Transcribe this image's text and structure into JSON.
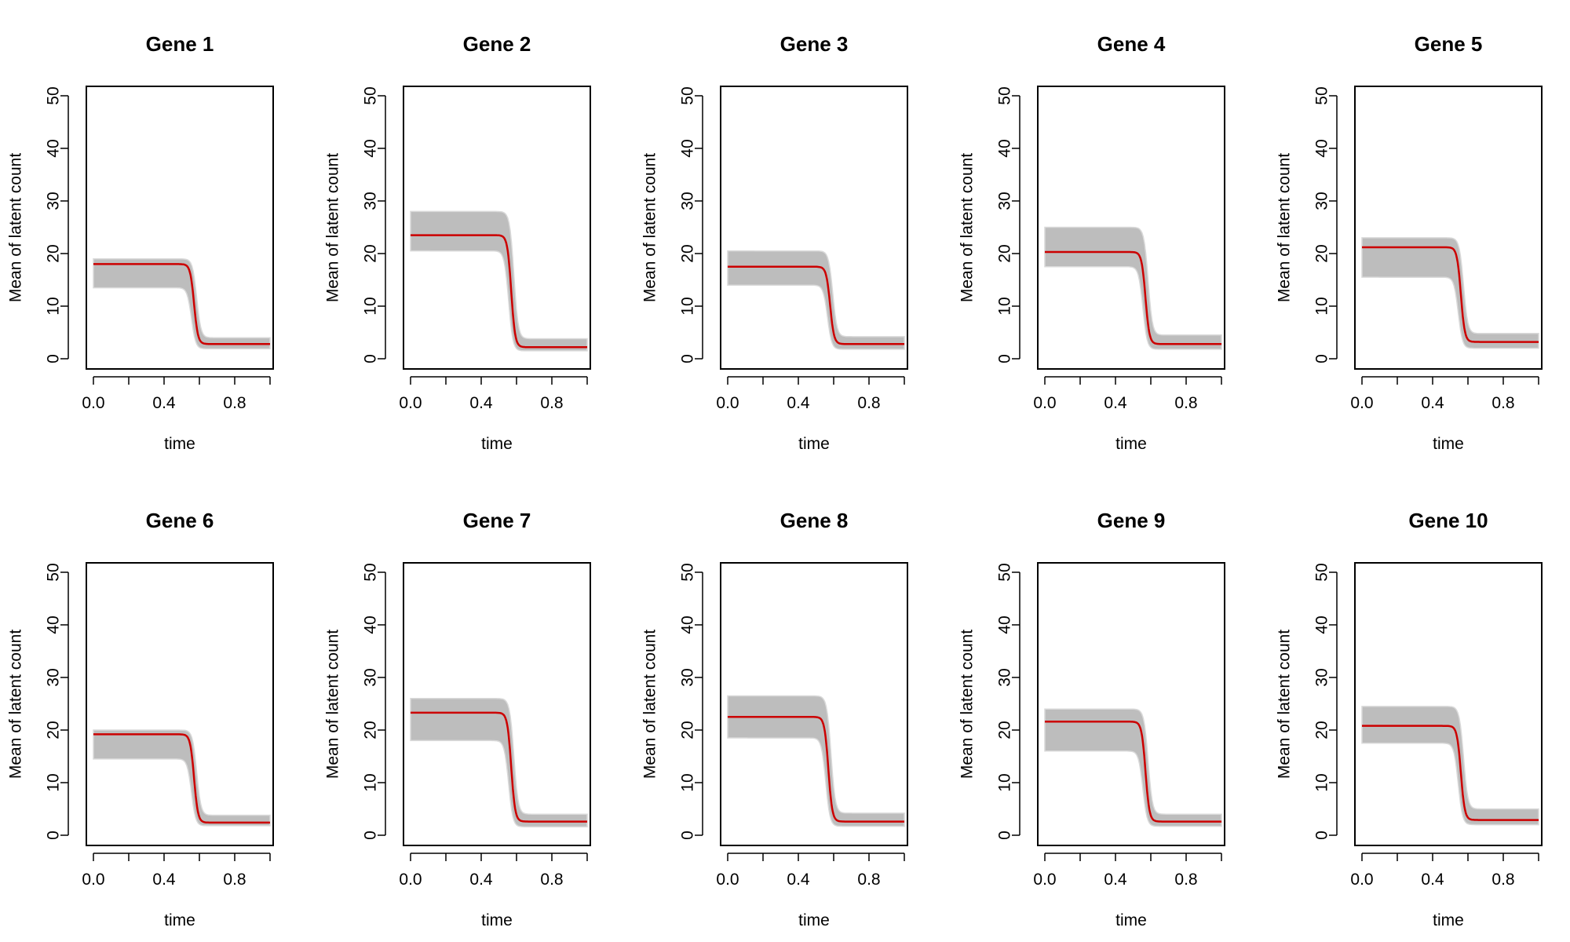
{
  "colors": {
    "band": "#bdbdbd",
    "band_edge": "#d9d9d9",
    "mean_line": "#cc0000",
    "axis": "#000000"
  },
  "chart_data": [
    {
      "type": "line",
      "title": "Gene 1",
      "xlabel": "time",
      "ylabel": "Mean of latent count",
      "xlim": [
        0,
        1
      ],
      "ylim": [
        0,
        50
      ],
      "xticks": [
        "0.0",
        "0.4",
        "0.8"
      ],
      "yticks": [
        "0",
        "10",
        "20",
        "30",
        "40",
        "50"
      ],
      "pre": 18.0,
      "post": 2.8,
      "switch_time": 0.57,
      "band_pre": [
        13.5,
        19.0
      ],
      "band_post": [
        1.9,
        4.0
      ],
      "band_range": [
        13.5,
        19.0
      ]
    },
    {
      "type": "line",
      "title": "Gene 2",
      "xlabel": "time",
      "ylabel": "Mean of latent count",
      "xlim": [
        0,
        1
      ],
      "ylim": [
        0,
        50
      ],
      "xticks": [
        "0.0",
        "0.4",
        "0.8"
      ],
      "yticks": [
        "0",
        "10",
        "20",
        "30",
        "40",
        "50"
      ],
      "pre": 23.5,
      "post": 2.2,
      "switch_time": 0.57,
      "band_pre": [
        20.5,
        28.0
      ],
      "band_post": [
        1.5,
        3.8
      ],
      "band_range": [
        20.5,
        28.0
      ]
    },
    {
      "type": "line",
      "title": "Gene 3",
      "xlabel": "time",
      "ylabel": "Mean of latent count",
      "xlim": [
        0,
        1
      ],
      "ylim": [
        0,
        50
      ],
      "xticks": [
        "0.0",
        "0.4",
        "0.8"
      ],
      "yticks": [
        "0",
        "10",
        "20",
        "30",
        "40",
        "50"
      ],
      "pre": 17.5,
      "post": 2.8,
      "switch_time": 0.58,
      "band_pre": [
        14.0,
        20.5
      ],
      "band_post": [
        1.8,
        4.2
      ],
      "band_range": [
        14.0,
        20.5
      ]
    },
    {
      "type": "line",
      "title": "Gene 4",
      "xlabel": "time",
      "ylabel": "Mean of latent count",
      "xlim": [
        0,
        1
      ],
      "ylim": [
        0,
        50
      ],
      "xticks": [
        "0.0",
        "0.4",
        "0.8"
      ],
      "yticks": [
        "0",
        "10",
        "20",
        "30",
        "40",
        "50"
      ],
      "pre": 20.3,
      "post": 2.8,
      "switch_time": 0.57,
      "band_pre": [
        17.5,
        25.0
      ],
      "band_post": [
        1.8,
        4.5
      ],
      "band_range": [
        17.5,
        25.0
      ]
    },
    {
      "type": "line",
      "title": "Gene 5",
      "xlabel": "time",
      "ylabel": "Mean of latent count",
      "xlim": [
        0,
        1
      ],
      "ylim": [
        0,
        50
      ],
      "xticks": [
        "0.0",
        "0.4",
        "0.8"
      ],
      "yticks": [
        "0",
        "10",
        "20",
        "30",
        "40",
        "50"
      ],
      "pre": 21.2,
      "post": 3.2,
      "switch_time": 0.56,
      "band_pre": [
        15.5,
        23.0
      ],
      "band_post": [
        2.0,
        4.8
      ],
      "band_range": [
        15.5,
        23.0
      ]
    },
    {
      "type": "line",
      "title": "Gene 6",
      "xlabel": "time",
      "ylabel": "Mean of latent count",
      "xlim": [
        0,
        1
      ],
      "ylim": [
        0,
        50
      ],
      "xticks": [
        "0.0",
        "0.4",
        "0.8"
      ],
      "yticks": [
        "0",
        "10",
        "20",
        "30",
        "40",
        "50"
      ],
      "pre": 19.2,
      "post": 2.4,
      "switch_time": 0.57,
      "band_pre": [
        14.5,
        20.0
      ],
      "band_post": [
        1.8,
        3.8
      ],
      "band_range": [
        14.5,
        20.0
      ]
    },
    {
      "type": "line",
      "title": "Gene 7",
      "xlabel": "time",
      "ylabel": "Mean of latent count",
      "xlim": [
        0,
        1
      ],
      "ylim": [
        0,
        50
      ],
      "xticks": [
        "0.0",
        "0.4",
        "0.8"
      ],
      "yticks": [
        "0",
        "10",
        "20",
        "30",
        "40",
        "50"
      ],
      "pre": 23.3,
      "post": 2.6,
      "switch_time": 0.57,
      "band_pre": [
        18.0,
        26.0
      ],
      "band_post": [
        1.6,
        4.0
      ],
      "band_range": [
        18.0,
        26.0
      ]
    },
    {
      "type": "line",
      "title": "Gene 8",
      "xlabel": "time",
      "ylabel": "Mean of latent count",
      "xlim": [
        0,
        1
      ],
      "ylim": [
        0,
        50
      ],
      "xticks": [
        "0.0",
        "0.4",
        "0.8"
      ],
      "yticks": [
        "0",
        "10",
        "20",
        "30",
        "40",
        "50"
      ],
      "pre": 22.5,
      "post": 2.6,
      "switch_time": 0.57,
      "band_pre": [
        18.5,
        26.5
      ],
      "band_post": [
        1.7,
        4.2
      ],
      "band_range": [
        18.5,
        26.5
      ]
    },
    {
      "type": "line",
      "title": "Gene 9",
      "xlabel": "time",
      "ylabel": "Mean of latent count",
      "xlim": [
        0,
        1
      ],
      "ylim": [
        0,
        50
      ],
      "xticks": [
        "0.0",
        "0.4",
        "0.8"
      ],
      "yticks": [
        "0",
        "10",
        "20",
        "30",
        "40",
        "50"
      ],
      "pre": 21.6,
      "post": 2.6,
      "switch_time": 0.57,
      "band_pre": [
        16.0,
        24.0
      ],
      "band_post": [
        1.7,
        4.0
      ],
      "band_range": [
        16.0,
        24.0
      ]
    },
    {
      "type": "line",
      "title": "Gene 10",
      "xlabel": "time",
      "ylabel": "Mean of latent count",
      "xlim": [
        0,
        1
      ],
      "ylim": [
        0,
        50
      ],
      "xticks": [
        "0.0",
        "0.4",
        "0.8"
      ],
      "yticks": [
        "0",
        "10",
        "20",
        "30",
        "40",
        "50"
      ],
      "pre": 20.8,
      "post": 2.9,
      "switch_time": 0.56,
      "band_pre": [
        17.5,
        24.5
      ],
      "band_post": [
        2.0,
        5.0
      ],
      "band_range": [
        17.5,
        24.5
      ]
    }
  ]
}
